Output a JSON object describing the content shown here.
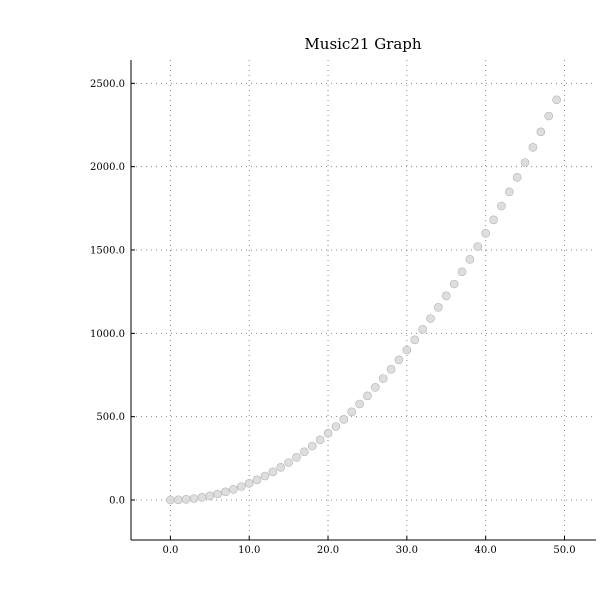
{
  "chart_data": {
    "type": "scatter",
    "title": "Music21 Graph",
    "xlabel": "",
    "ylabel": "",
    "xlim": [
      -5,
      54
    ],
    "ylim": [
      -240,
      2640
    ],
    "x_ticks": [
      0,
      10,
      20,
      30,
      40,
      50
    ],
    "y_ticks": [
      0,
      500,
      1000,
      1500,
      2000,
      2500
    ],
    "x_tick_labels": [
      "0.0",
      "10.0",
      "20.0",
      "30.0",
      "40.0",
      "50.0"
    ],
    "y_tick_labels": [
      "0.0",
      "500.0",
      "1000.0",
      "1500.0",
      "2000.0",
      "2500.0"
    ],
    "grid": true,
    "point_color": "#d8d8d8",
    "series": [
      {
        "x": [
          0,
          1,
          2,
          3,
          4,
          5,
          6,
          7,
          8,
          9,
          10,
          11,
          12,
          13,
          14,
          15,
          16,
          17,
          18,
          19,
          20,
          21,
          22,
          23,
          24,
          25,
          26,
          27,
          28,
          29,
          30,
          31,
          32,
          33,
          34,
          35,
          36,
          37,
          38,
          39,
          40,
          41,
          42,
          43,
          44,
          45,
          46,
          47,
          48,
          49
        ],
        "y": [
          0,
          1,
          4,
          9,
          16,
          25,
          36,
          49,
          64,
          81,
          100,
          121,
          144,
          169,
          196,
          225,
          256,
          289,
          324,
          361,
          400,
          441,
          484,
          529,
          576,
          625,
          676,
          729,
          784,
          841,
          900,
          961,
          1024,
          1089,
          1156,
          1225,
          1296,
          1369,
          1444,
          1521,
          1600,
          1681,
          1764,
          1849,
          1936,
          2025,
          2116,
          2209,
          2304,
          2401
        ]
      }
    ]
  }
}
